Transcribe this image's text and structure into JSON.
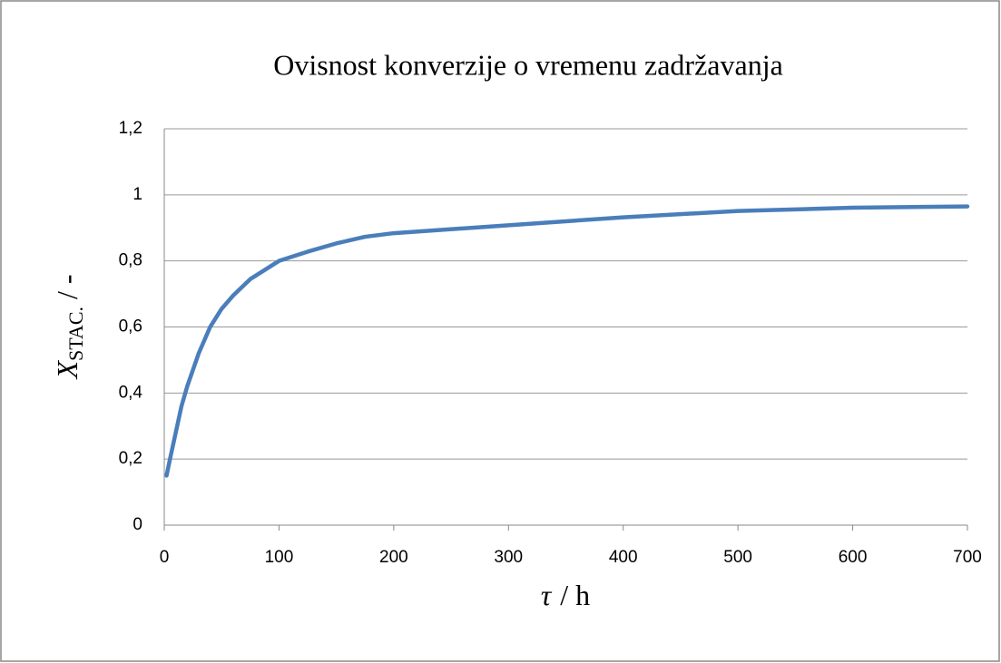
{
  "chart_data": {
    "type": "line",
    "title": "Ovisnost konverzije o vremenu zadržavanja",
    "x_label": {
      "symbol": "τ",
      "unit": "/ h"
    },
    "y_label": {
      "symbol": "X",
      "subscript": "STAC.",
      "unit": "/ -"
    },
    "x": [
      2,
      5,
      10,
      15,
      20,
      30,
      40,
      50,
      60,
      75,
      100,
      125,
      150,
      175,
      200,
      300,
      400,
      500,
      600,
      700
    ],
    "values": [
      0.15,
      0.2,
      0.28,
      0.36,
      0.42,
      0.52,
      0.6,
      0.655,
      0.695,
      0.745,
      0.8,
      0.828,
      0.853,
      0.873,
      0.884,
      0.908,
      0.932,
      0.951,
      0.961,
      0.965
    ],
    "color": "#4a7ebb",
    "xlim": [
      0,
      700
    ],
    "xticks": [
      0,
      100,
      200,
      300,
      400,
      500,
      600,
      700
    ],
    "ylim": [
      0,
      1.2
    ],
    "yticks": [
      0,
      {
        "value": 0.2,
        "label": "0,2"
      },
      {
        "value": 0.4,
        "label": "0,4"
      },
      {
        "value": 0.6,
        "label": "0,6"
      },
      {
        "value": 0.8,
        "label": "0,8"
      },
      1,
      {
        "value": 1.2,
        "label": "1,2"
      }
    ],
    "grid": true
  }
}
